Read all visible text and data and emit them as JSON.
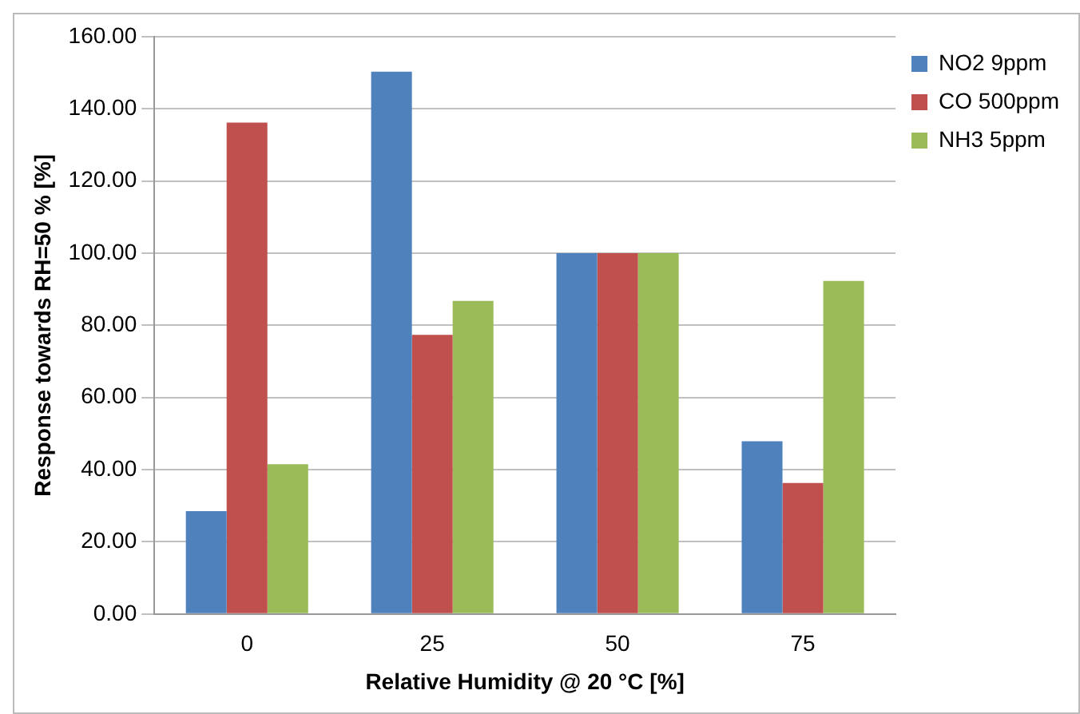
{
  "chart_data": {
    "type": "bar",
    "xlabel": "Relative Humidity @ 20 °C [%]",
    "ylabel": "Response towards RH=50 % [%]",
    "categories": [
      "0",
      "25",
      "50",
      "75"
    ],
    "series": [
      {
        "name": "NO2 9ppm",
        "color": "#4f81bd",
        "values": [
          28.5,
          150.3,
          100,
          47.9
        ]
      },
      {
        "name": "CO 500ppm",
        "color": "#c0504d",
        "values": [
          136.2,
          77.4,
          100,
          36.3
        ]
      },
      {
        "name": "NH3 5ppm",
        "color": "#9bbb59",
        "values": [
          41.5,
          86.8,
          100,
          92.3
        ]
      }
    ],
    "ylim": [
      0,
      160
    ],
    "yticks": [
      {
        "value": 0,
        "label": "0.00"
      },
      {
        "value": 20,
        "label": "20.00"
      },
      {
        "value": 40,
        "label": "40.00"
      },
      {
        "value": 60,
        "label": "60.00"
      },
      {
        "value": 80,
        "label": "80.00"
      },
      {
        "value": 100,
        "label": "100.00"
      },
      {
        "value": 120,
        "label": "120.00"
      },
      {
        "value": 140,
        "label": "140.00"
      },
      {
        "value": 160,
        "label": "160.00"
      }
    ],
    "grid": "y",
    "legend": "top right"
  }
}
